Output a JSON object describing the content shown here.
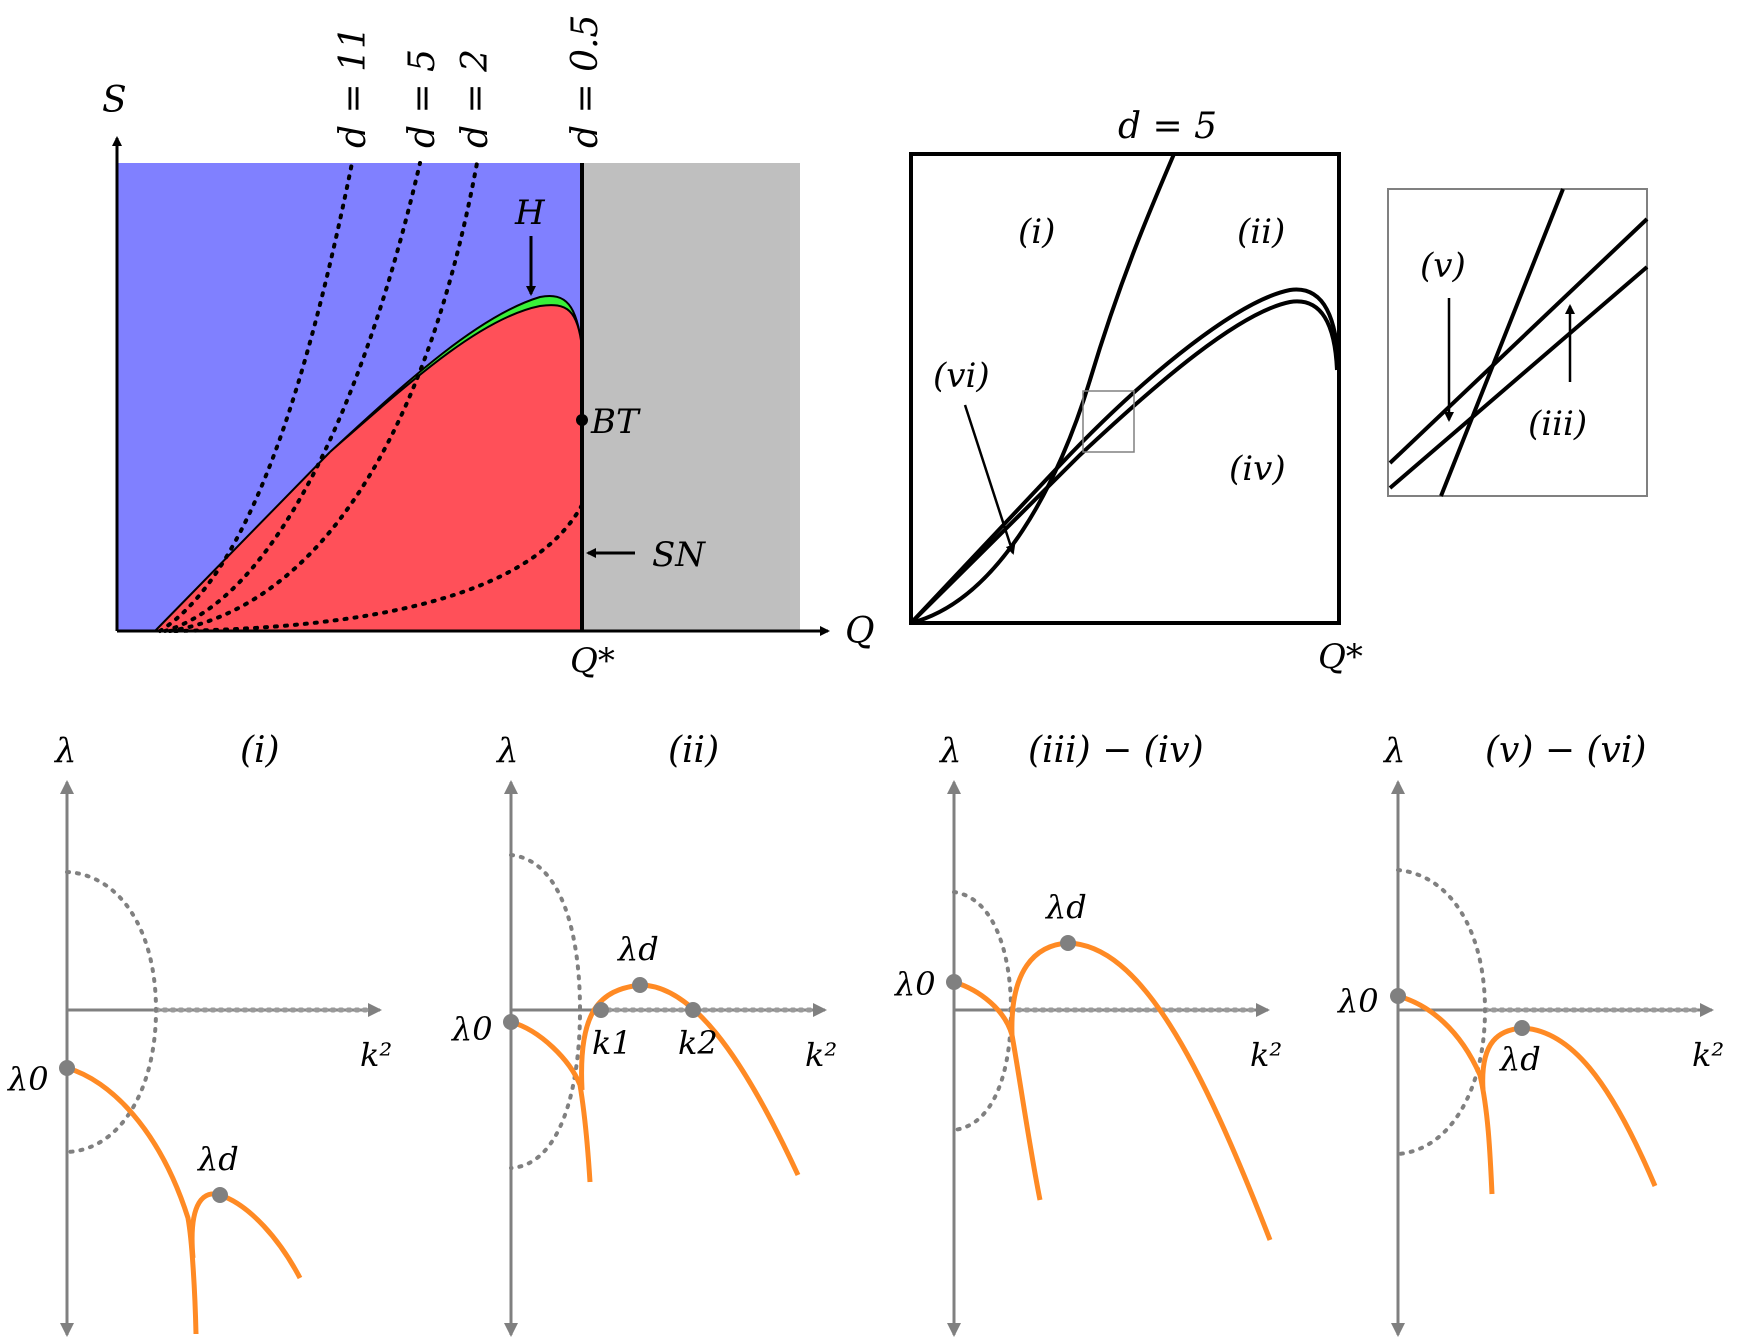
{
  "top_left": {
    "axis_y": "S",
    "axis_x": "Q",
    "q_star": "Q*",
    "d_labels": [
      "d = 11",
      "d = 5",
      "d = 2",
      "d = 0.5"
    ],
    "H": "H",
    "BT": "BT",
    "SN": "SN",
    "colors": {
      "blue": "#8080ff",
      "red": "#ff5059",
      "green": "#39f039",
      "gray": "#bfbfbf"
    }
  },
  "top_middle": {
    "title": "d = 5",
    "regions": [
      "(i)",
      "(ii)",
      "(iv)",
      "(vi)"
    ],
    "q_star": "Q*"
  },
  "inset": {
    "regions": [
      "(v)",
      "(iii)"
    ]
  },
  "bottom": {
    "lambda": "λ",
    "k2": "k²",
    "lambda0": "λ0",
    "lambda_d": "λd",
    "k1": "k1",
    "k2_root": "k2",
    "titles": [
      "(i)",
      "(ii)",
      "(iii) − (iv)",
      "(v) − (vi)"
    ],
    "colors": {
      "curve": "#ff8a24",
      "axis": "#808080",
      "dot": "#808080"
    }
  }
}
